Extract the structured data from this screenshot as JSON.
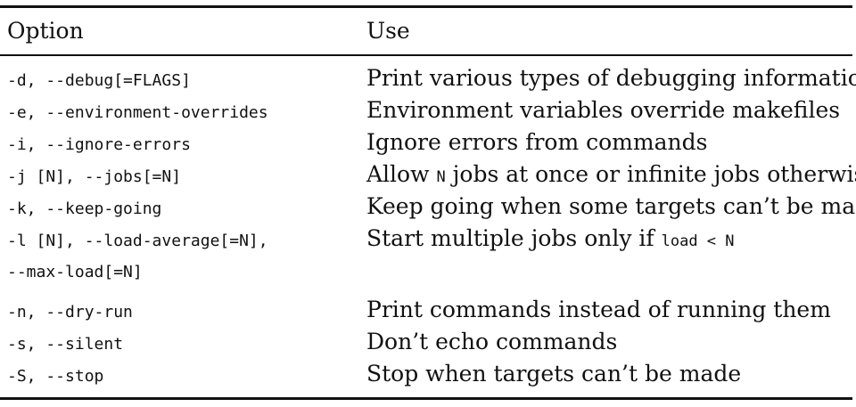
{
  "table": {
    "headers": {
      "option": "Option",
      "use": "Use"
    },
    "rows": [
      {
        "option": "-d, --debug[=FLAGS]",
        "use": "Print various types of debugging information"
      },
      {
        "option": "-e, --environment-overrides",
        "use": "Environment variables override makefiles"
      },
      {
        "option": "-i, --ignore-errors",
        "use": "Ignore errors from commands"
      },
      {
        "option": "-j [N], --jobs[=N]",
        "use_prefix": "Allow ",
        "use_code": "N",
        "use_suffix": " jobs at once or infinite jobs otherwise"
      },
      {
        "option": "-k, --keep-going",
        "use": "Keep going when some targets can’t be made"
      },
      {
        "option": "-l [N], --load-average[=N],",
        "option_line2": "--max-load[=N]",
        "use_prefix": "Start multiple jobs only if ",
        "use_code": "load < N"
      },
      {
        "option": "-n, --dry-run",
        "use": "Print commands instead of running them"
      },
      {
        "option": "-s, --silent",
        "use": "Don’t echo commands"
      },
      {
        "option": "-S, --stop",
        "use": "Stop when targets can’t be made"
      }
    ]
  }
}
